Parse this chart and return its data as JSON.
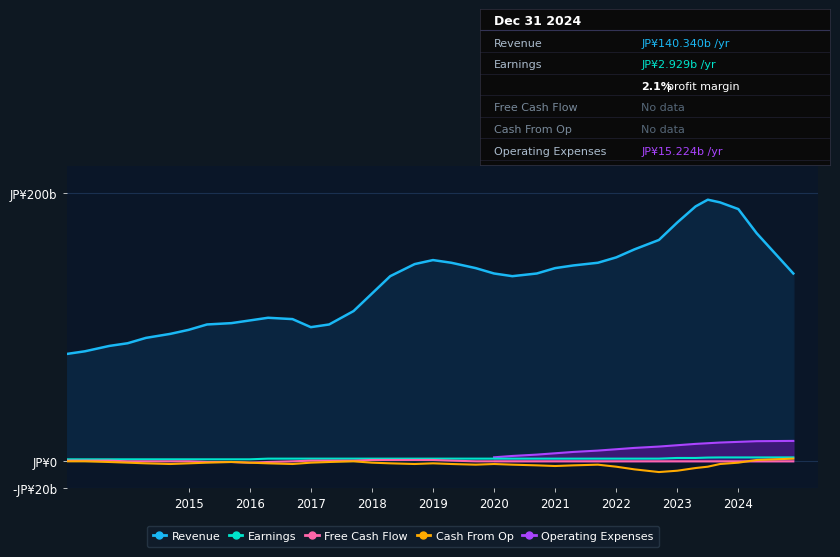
{
  "bg_color": "#0e1822",
  "plot_bg_color": "#0a1628",
  "text_color": "#ffffff",
  "dim_text_color": "#8899aa",
  "years": [
    2013.0,
    2013.3,
    2013.7,
    2014.0,
    2014.3,
    2014.7,
    2015.0,
    2015.3,
    2015.7,
    2016.0,
    2016.3,
    2016.7,
    2017.0,
    2017.3,
    2017.7,
    2018.0,
    2018.3,
    2018.7,
    2019.0,
    2019.3,
    2019.7,
    2020.0,
    2020.3,
    2020.7,
    2021.0,
    2021.3,
    2021.7,
    2022.0,
    2022.3,
    2022.7,
    2023.0,
    2023.3,
    2023.5,
    2023.7,
    2024.0,
    2024.3,
    2024.9
  ],
  "revenue": [
    80,
    82,
    86,
    88,
    92,
    95,
    98,
    102,
    103,
    105,
    107,
    106,
    100,
    102,
    112,
    125,
    138,
    147,
    150,
    148,
    144,
    140,
    138,
    140,
    144,
    146,
    148,
    152,
    158,
    165,
    178,
    190,
    195,
    193,
    188,
    170,
    140
  ],
  "earnings": [
    1.5,
    1.5,
    1.5,
    1.5,
    1.5,
    1.5,
    1.5,
    1.5,
    1.5,
    1.5,
    2,
    2,
    2,
    2,
    2,
    2,
    2,
    2,
    2,
    2,
    2,
    2,
    2,
    2,
    2,
    2,
    2,
    2,
    2,
    2,
    2.5,
    2.5,
    2.8,
    2.9,
    2.9,
    2.9,
    2.929
  ],
  "free_cash_flow": [
    0.5,
    0.5,
    0.5,
    0,
    0,
    0,
    0,
    -0.5,
    -0.5,
    -1,
    -0.5,
    0,
    0.5,
    0.5,
    0.5,
    1,
    1,
    1,
    1,
    0.5,
    0,
    0,
    0,
    0,
    0,
    0,
    0,
    0,
    0,
    0,
    0,
    0,
    0,
    0,
    0,
    0,
    0
  ],
  "cash_from_op": [
    0,
    0,
    -0.5,
    -1,
    -1.5,
    -2,
    -1.5,
    -1,
    -0.5,
    -1,
    -1.5,
    -2,
    -1,
    -0.5,
    0,
    -1,
    -1.5,
    -2,
    -1.5,
    -2,
    -2.5,
    -2,
    -2.5,
    -3,
    -3.5,
    -3,
    -2.5,
    -4,
    -6,
    -8,
    -7,
    -5,
    -4,
    -2,
    -1,
    1,
    2
  ],
  "operating_expenses": [
    null,
    null,
    null,
    null,
    null,
    null,
    null,
    null,
    null,
    null,
    null,
    null,
    null,
    null,
    null,
    null,
    null,
    null,
    null,
    null,
    null,
    3,
    4,
    5,
    6,
    7,
    8,
    9,
    10,
    11,
    12,
    13,
    13.5,
    14,
    14.5,
    15,
    15.224
  ],
  "revenue_color": "#1ab8f5",
  "revenue_fill_color": "#0a2540",
  "earnings_color": "#00e5cc",
  "free_cash_flow_color": "#ff66aa",
  "cash_from_op_color": "#ffaa00",
  "operating_expenses_color": "#aa44ff",
  "operating_expenses_fill_color": "#441880",
  "ylim": [
    -20,
    220
  ],
  "yticks": [
    -20,
    0,
    200
  ],
  "ytick_labels": [
    "-JP¥20b",
    "JP¥0",
    "JP¥200b"
  ],
  "xtick_years": [
    2015,
    2016,
    2017,
    2018,
    2019,
    2020,
    2021,
    2022,
    2023,
    2024
  ],
  "info_box": {
    "title": "Dec 31 2024",
    "rows": [
      {
        "label": "Revenue",
        "value": "JP¥140.340b /yr",
        "value_color": "#1ab8f5",
        "dim": false
      },
      {
        "label": "Earnings",
        "value": "JP¥2.929b /yr",
        "value_color": "#00e5cc",
        "dim": false
      },
      {
        "label": "",
        "value": "2.1% profit margin",
        "value_color": "#ffffff",
        "dim": false
      },
      {
        "label": "Free Cash Flow",
        "value": "No data",
        "value_color": "#556677",
        "dim": true
      },
      {
        "label": "Cash From Op",
        "value": "No data",
        "value_color": "#556677",
        "dim": true
      },
      {
        "label": "Operating Expenses",
        "value": "JP¥15.224b /yr",
        "value_color": "#aa44ff",
        "dim": false
      }
    ]
  },
  "legend_items": [
    {
      "label": "Revenue",
      "color": "#1ab8f5"
    },
    {
      "label": "Earnings",
      "color": "#00e5cc"
    },
    {
      "label": "Free Cash Flow",
      "color": "#ff66aa"
    },
    {
      "label": "Cash From Op",
      "color": "#ffaa00"
    },
    {
      "label": "Operating Expenses",
      "color": "#aa44ff"
    }
  ]
}
